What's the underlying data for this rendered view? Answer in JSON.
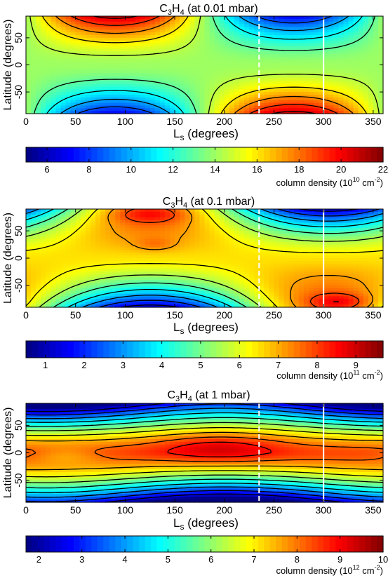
{
  "chart_data": [
    {
      "type": "heatmap",
      "title": "C3H4 (at 0.01 mbar)",
      "title_parts": {
        "prefix": "C",
        "sub1": "3",
        "mid": "H",
        "sub2": "4",
        "suffix": " (at 0.01 mbar)"
      },
      "xlabel": "Ls (degrees)",
      "xlabel_parts": {
        "main": "L",
        "sub": "s",
        "rest": " (degrees)"
      },
      "ylabel": "Latitude (degrees)",
      "xlim": [
        0,
        360
      ],
      "ylim": [
        -90,
        90
      ],
      "x_ticks": [
        0,
        50,
        100,
        150,
        200,
        250,
        300,
        350
      ],
      "y_ticks": [
        -50,
        0,
        50
      ],
      "vertical_lines": [
        235,
        300
      ],
      "colorbar": {
        "range": [
          5,
          22
        ],
        "ticks": [
          6,
          8,
          10,
          12,
          14,
          16,
          18,
          20,
          22
        ],
        "label": "column density (10^10 cm^-2)",
        "label_parts": {
          "prefix": "column density (10",
          "exp1": "10",
          "mid": " cm",
          "exp2": "-2",
          "suffix": ")"
        }
      },
      "field": {
        "description_values": "column density vs Ls and latitude",
        "north_max": {
          "ls": 85,
          "value": 21
        },
        "south_max": {
          "ls": 270,
          "value": 21
        },
        "north_min": {
          "ls": 270,
          "value": 5.5
        },
        "south_min": {
          "ls": 85,
          "value": 5.5
        },
        "equator_value": 14
      },
      "contour_levels": [
        7,
        8.5,
        10,
        11.5,
        13,
        14.5,
        16,
        17.5,
        19,
        20.5
      ]
    },
    {
      "type": "heatmap",
      "title": "C3H4 (at 0.1 mbar)",
      "title_parts": {
        "prefix": "C",
        "sub1": "3",
        "mid": "H",
        "sub2": "4",
        "suffix": " (at 0.1 mbar)"
      },
      "xlabel": "Ls (degrees)",
      "xlabel_parts": {
        "main": "L",
        "sub": "s",
        "rest": " (degrees)"
      },
      "ylabel": "Latitude (degrees)",
      "xlim": [
        0,
        360
      ],
      "ylim": [
        -90,
        90
      ],
      "x_ticks": [
        0,
        50,
        100,
        150,
        200,
        250,
        300,
        350
      ],
      "y_ticks": [
        -50,
        0,
        50
      ],
      "vertical_lines": [
        235,
        300
      ],
      "colorbar": {
        "range": [
          0.5,
          9.7
        ],
        "ticks": [
          1,
          2,
          3,
          4,
          5,
          6,
          7,
          8,
          9
        ],
        "label": "column density (10^11 cm^-2)",
        "label_parts": {
          "prefix": "column density (10",
          "exp1": "11",
          "mid": " cm",
          "exp2": "-2",
          "suffix": ")"
        }
      },
      "field": {
        "north_max": {
          "ls": 125,
          "value": 9.5
        },
        "south_max": {
          "ls": 315,
          "value": 9.3
        },
        "north_min": {
          "ls": 300,
          "value": 0.8
        },
        "south_min": {
          "ls": 120,
          "value": 0.8
        },
        "equator_value": 6.5
      },
      "contour_levels": [
        1.5,
        2.3,
        3.1,
        3.9,
        4.7,
        5.5,
        6.3,
        7.1,
        7.9,
        8.7
      ]
    },
    {
      "type": "heatmap",
      "title": "C3H4 (at 1 mbar)",
      "title_parts": {
        "prefix": "C",
        "sub1": "3",
        "mid": "H",
        "sub2": "4",
        "suffix": " (at 1 mbar)"
      },
      "xlabel": "Ls (degrees)",
      "xlabel_parts": {
        "main": "L",
        "sub": "s",
        "rest": " (degrees)"
      },
      "ylabel": "Latitude (degrees)",
      "xlim": [
        0,
        360
      ],
      "ylim": [
        -90,
        90
      ],
      "x_ticks": [
        0,
        50,
        100,
        150,
        200,
        250,
        300,
        350
      ],
      "y_ticks": [
        -50,
        0,
        50
      ],
      "vertical_lines": [
        235,
        300
      ],
      "colorbar": {
        "range": [
          1.7,
          10
        ],
        "ticks": [
          2,
          3,
          4,
          5,
          6,
          7,
          8,
          9,
          10
        ],
        "label": "column density (10^12 cm^-2)",
        "label_parts": {
          "prefix": "column density (10",
          "exp1": "12",
          "mid": " cm",
          "exp2": "-2",
          "suffix": ")"
        }
      },
      "field": {
        "equator_max": {
          "ls": 195,
          "value": 9.8
        },
        "north_min": {
          "ls": 40,
          "value": 2.0
        },
        "south_min": {
          "ls": 200,
          "value": 2.0
        },
        "equator_value": 9.0
      },
      "contour_levels": [
        2.5,
        3.2,
        3.9,
        4.6,
        5.3,
        6.0,
        6.7,
        7.4,
        8.1,
        8.8,
        9.5
      ]
    }
  ]
}
